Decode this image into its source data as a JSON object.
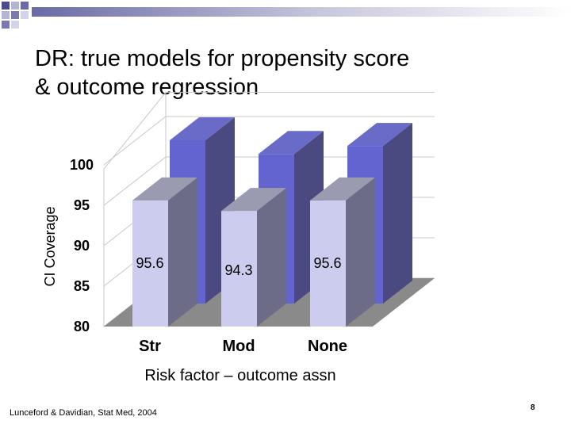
{
  "slide": {
    "title_line1": "DR: true models for propensity score",
    "title_line2": "& outcome regression",
    "citation": "Lunceford & Davidian, Stat Med, 2004",
    "page_number": "8"
  },
  "chart_data": {
    "type": "bar",
    "style": "3d-stacked",
    "title": "",
    "xlabel": "Risk factor – outcome assn",
    "ylabel": "CI Coverage",
    "ylim": [
      80,
      100
    ],
    "yticks": [
      80,
      85,
      90,
      95,
      100
    ],
    "categories": [
      "Str",
      "Mod",
      "None"
    ],
    "series": [
      {
        "name": "back",
        "values": [
          100.2,
          98.5,
          99.5
        ]
      },
      {
        "name": "front",
        "values": [
          95.6,
          94.3,
          95.6
        ]
      }
    ],
    "data_labels": [
      "95.6",
      "94.3",
      "95.6"
    ],
    "colors": {
      "front_face": "#ccccee",
      "front_side": "#6c6c88",
      "front_top": "#9a9ab0",
      "back_face": "#6464d0",
      "back_side": "#4a4a80",
      "back_top": "#6a6ac8",
      "floor": "#8a8a8a",
      "grid": "#c8c8c8"
    }
  }
}
